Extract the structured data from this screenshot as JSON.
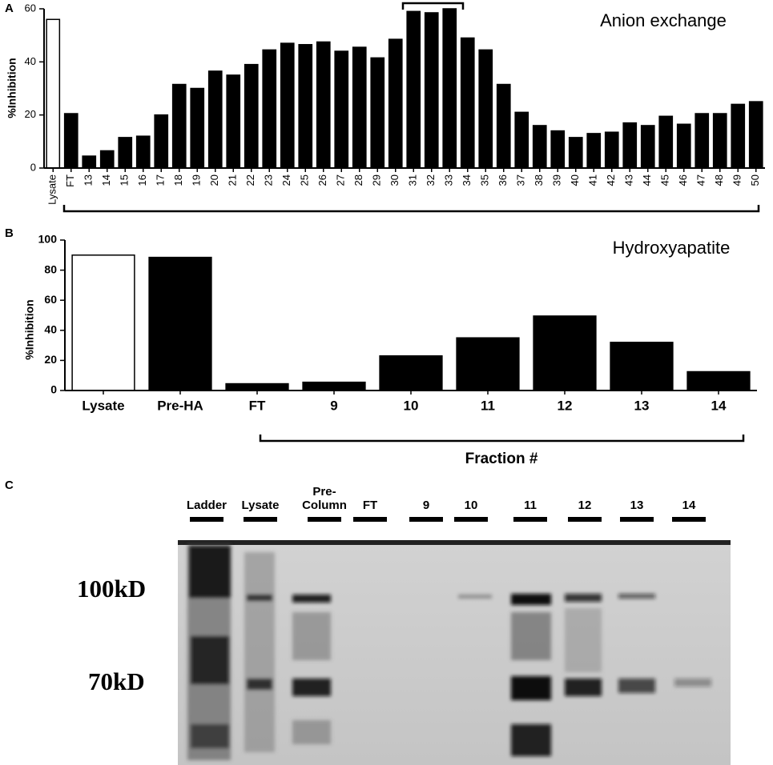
{
  "chart_data": [
    {
      "type": "bar",
      "title": "Anion exchange",
      "ylabel": "%Inhibition",
      "categories": [
        "Lysate",
        "FT",
        "13",
        "14",
        "15",
        "16",
        "17",
        "18",
        "19",
        "20",
        "21",
        "22",
        "23",
        "24",
        "25",
        "26",
        "27",
        "28",
        "29",
        "30",
        "31",
        "32",
        "33",
        "34",
        "35",
        "36",
        "37",
        "38",
        "39",
        "40",
        "41",
        "42",
        "43",
        "44",
        "45",
        "46",
        "47",
        "48",
        "49",
        "50"
      ],
      "values": [
        56,
        20.5,
        4.5,
        6.5,
        11.5,
        12,
        20,
        31.5,
        30,
        36.5,
        35,
        39,
        44.5,
        47,
        46.5,
        47.5,
        44,
        45.5,
        41.5,
        48.5,
        59,
        58.5,
        60,
        49,
        44.5,
        31.5,
        21,
        16,
        14,
        11.5,
        13,
        13.5,
        17,
        16,
        19.5,
        16.5,
        20.5,
        20.5,
        24,
        25
      ],
      "colors": [
        "#ffffff",
        "#000000",
        "#000000",
        "#000000",
        "#000000",
        "#000000",
        "#000000",
        "#000000",
        "#000000",
        "#000000",
        "#000000",
        "#000000",
        "#000000",
        "#000000",
        "#000000",
        "#000000",
        "#000000",
        "#000000",
        "#000000",
        "#000000",
        "#000000",
        "#000000",
        "#000000",
        "#000000",
        "#000000",
        "#000000",
        "#000000",
        "#000000",
        "#000000",
        "#000000",
        "#000000",
        "#000000",
        "#000000",
        "#000000",
        "#000000",
        "#000000",
        "#000000",
        "#000000",
        "#000000",
        "#000000"
      ],
      "ylim": [
        0,
        60
      ],
      "yticks": [
        0,
        20,
        40,
        60
      ]
    },
    {
      "type": "bar",
      "title": "Hydroxyapatite",
      "ylabel": "%Inhibition",
      "xlabel": "Fraction #",
      "categories": [
        "Lysate",
        "Pre-HA",
        "FT",
        "9",
        "10",
        "11",
        "12",
        "13",
        "14"
      ],
      "values": [
        90,
        88.5,
        4.5,
        5.5,
        23,
        35,
        49.5,
        32,
        12.5
      ],
      "colors": [
        "#ffffff",
        "#000000",
        "#000000",
        "#000000",
        "#000000",
        "#000000",
        "#000000",
        "#000000",
        "#000000"
      ],
      "ylim": [
        0,
        100
      ],
      "yticks": [
        0,
        20,
        40,
        60,
        80,
        100
      ]
    }
  ],
  "panel_labels": [
    "A",
    "B",
    "C"
  ],
  "gel": {
    "lanes": [
      "Ladder",
      "Lysate",
      "Pre-\nColumn",
      "FT",
      "9",
      "10",
      "11",
      "12",
      "13",
      "14"
    ],
    "markers": [
      "100kD",
      "70kD"
    ]
  }
}
